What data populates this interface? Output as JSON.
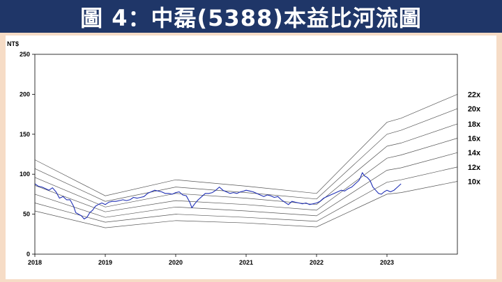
{
  "header": {
    "title": "圖 4：中磊(5388)本益比河流圖",
    "bg_color": "#1f3668",
    "text_color": "#ffffff"
  },
  "colors": {
    "page_bg": "#f6dcc6",
    "price_line": "#1f2fb5",
    "band_lines": "#555555",
    "axis": "#000000"
  },
  "chart_data": {
    "type": "line",
    "ylabel": "NT$",
    "ylim": [
      0,
      250
    ],
    "y_ticks": [
      0,
      50,
      100,
      150,
      200,
      250
    ],
    "xlim": [
      2018.0,
      2024.0
    ],
    "x_ticks": [
      "2018",
      "2019",
      "2020",
      "2021",
      "2022",
      "2023"
    ],
    "grid": false,
    "bands": [
      {
        "name": "22x",
        "x": [
          2018.0,
          2019.0,
          2020.0,
          2021.0,
          2022.0,
          2023.0,
          2023.2,
          2024.0
        ],
        "values": [
          118,
          73,
          93,
          85,
          76,
          165,
          170,
          200
        ]
      },
      {
        "name": "20x",
        "x": [
          2018.0,
          2019.0,
          2020.0,
          2021.0,
          2022.0,
          2023.0,
          2023.2,
          2024.0
        ],
        "values": [
          107,
          66,
          84,
          77,
          69,
          150,
          155,
          182
        ]
      },
      {
        "name": "18x",
        "x": [
          2018.0,
          2019.0,
          2020.0,
          2021.0,
          2022.0,
          2023.0,
          2023.2,
          2024.0
        ],
        "values": [
          96,
          59,
          76,
          70,
          62,
          135,
          139,
          163
        ]
      },
      {
        "name": "16x",
        "x": [
          2018.0,
          2019.0,
          2020.0,
          2021.0,
          2022.0,
          2023.0,
          2023.2,
          2024.0
        ],
        "values": [
          86,
          53,
          67,
          62,
          55,
          120,
          124,
          145
        ]
      },
      {
        "name": "14x",
        "x": [
          2018.0,
          2019.0,
          2020.0,
          2021.0,
          2022.0,
          2023.0,
          2023.2,
          2024.0
        ],
        "values": [
          75,
          46,
          59,
          54,
          48,
          105,
          108,
          127
        ]
      },
      {
        "name": "12x",
        "x": [
          2018.0,
          2019.0,
          2020.0,
          2021.0,
          2022.0,
          2023.0,
          2023.2,
          2024.0
        ],
        "values": [
          64,
          40,
          50,
          46,
          41,
          90,
          93,
          109
        ]
      },
      {
        "name": "10x",
        "x": [
          2018.0,
          2019.0,
          2020.0,
          2021.0,
          2022.0,
          2023.0,
          2023.2,
          2024.0
        ],
        "values": [
          54,
          33,
          42,
          39,
          34,
          75,
          77,
          91
        ]
      }
    ],
    "series": [
      {
        "x": [
          2018.0,
          2018.05,
          2018.1,
          2018.15,
          2018.2,
          2018.25,
          2018.3,
          2018.35,
          2018.4,
          2018.45,
          2018.5,
          2018.55,
          2018.58,
          2018.62,
          2018.66,
          2018.7,
          2018.74,
          2018.78,
          2018.82,
          2018.86,
          2018.9,
          2018.95,
          2019.0,
          2019.05,
          2019.1,
          2019.15,
          2019.2,
          2019.25,
          2019.3,
          2019.35,
          2019.4,
          2019.45,
          2019.5,
          2019.55,
          2019.6,
          2019.65,
          2019.7,
          2019.75,
          2019.8,
          2019.85,
          2019.9,
          2019.95,
          2020.0,
          2020.05,
          2020.1,
          2020.15,
          2020.2,
          2020.23,
          2020.27,
          2020.32,
          2020.37,
          2020.42,
          2020.47,
          2020.52,
          2020.57,
          2020.62,
          2020.67,
          2020.72,
          2020.77,
          2020.82,
          2020.87,
          2020.92,
          2020.97,
          2021.0,
          2021.05,
          2021.1,
          2021.15,
          2021.2,
          2021.25,
          2021.3,
          2021.35,
          2021.4,
          2021.45,
          2021.5,
          2021.55,
          2021.6,
          2021.65,
          2021.7,
          2021.75,
          2021.8,
          2021.85,
          2021.9,
          2021.95,
          2022.0,
          2022.05,
          2022.1,
          2022.15,
          2022.2,
          2022.25,
          2022.3,
          2022.35,
          2022.4,
          2022.45,
          2022.5,
          2022.55,
          2022.6,
          2022.62,
          2022.65,
          2022.68,
          2022.72,
          2022.76,
          2022.8,
          2022.84,
          2022.88,
          2022.92,
          2022.96,
          2023.0,
          2023.05,
          2023.1,
          2023.15,
          2023.2
        ],
        "values": [
          88,
          85,
          84,
          82,
          80,
          83,
          78,
          70,
          72,
          68,
          68,
          60,
          52,
          50,
          48,
          44,
          46,
          52,
          55,
          60,
          62,
          64,
          62,
          65,
          66,
          66,
          67,
          68,
          67,
          68,
          71,
          70,
          71,
          72,
          76,
          78,
          80,
          79,
          78,
          76,
          76,
          75,
          77,
          78,
          74,
          73,
          65,
          58,
          63,
          68,
          72,
          76,
          76,
          77,
          80,
          84,
          80,
          78,
          76,
          77,
          76,
          78,
          79,
          80,
          79,
          78,
          76,
          74,
          72,
          74,
          73,
          71,
          72,
          68,
          65,
          62,
          66,
          65,
          64,
          63,
          64,
          62,
          63,
          64,
          66,
          70,
          72,
          74,
          76,
          78,
          80,
          79,
          82,
          84,
          88,
          92,
          95,
          102,
          98,
          96,
          92,
          84,
          80,
          76,
          75,
          78,
          80,
          78,
          80,
          84,
          88
        ]
      }
    ]
  }
}
